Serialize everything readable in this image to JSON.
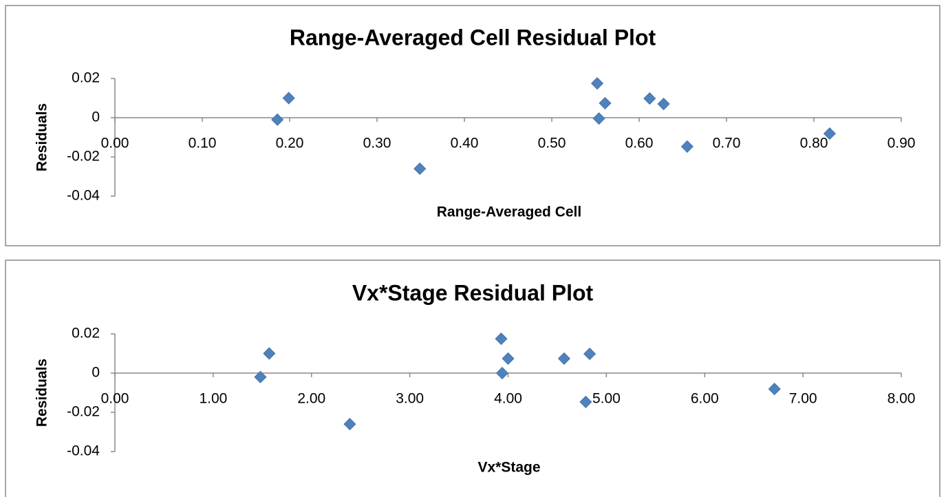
{
  "chart_data": [
    {
      "type": "scatter",
      "title": "Range-Averaged Cell  Residual Plot",
      "x_label": "Range-Averaged Cell",
      "y_label": "Residuals",
      "color": "#4f81bd",
      "x": [
        0.186,
        0.199,
        0.349,
        0.552,
        0.561,
        0.554,
        0.612,
        0.628,
        0.655,
        0.818
      ],
      "values": [
        -0.001,
        0.01,
        -0.026,
        0.0175,
        0.0074,
        -0.0004,
        0.0098,
        0.007,
        -0.0147,
        -0.0081
      ],
      "xlim": [
        0,
        0.9
      ],
      "xticks": [
        {
          "value": 0,
          "label": "0.00"
        },
        {
          "value": 0.1,
          "label": "0.10"
        },
        {
          "value": 0.2,
          "label": "0.20"
        },
        {
          "value": 0.3,
          "label": "0.30"
        },
        {
          "value": 0.4,
          "label": "0.40"
        },
        {
          "value": 0.5,
          "label": "0.50"
        },
        {
          "value": 0.6,
          "label": "0.60"
        },
        {
          "value": 0.7,
          "label": "0.70"
        },
        {
          "value": 0.8,
          "label": "0.80"
        },
        {
          "value": 0.9,
          "label": "0.90"
        }
      ],
      "ylim": [
        -0.04,
        0.02
      ],
      "yticks": [
        0.02,
        0,
        -0.02,
        -0.04
      ]
    },
    {
      "type": "scatter",
      "title": "Vx*Stage  Residual Plot",
      "x_label": "Vx*Stage",
      "y_label": "Residuals",
      "color": "#4f81bd",
      "x": [
        1.48,
        1.57,
        2.39,
        3.93,
        4.0,
        3.94,
        4.57,
        4.83,
        4.79,
        6.71
      ],
      "values": [
        -0.002,
        0.01,
        -0.026,
        0.0175,
        0.0074,
        0,
        0.0074,
        0.0098,
        -0.0147,
        -0.0081
      ],
      "xlim": [
        0,
        8
      ],
      "xticks": [
        {
          "value": 0,
          "label": "0.00"
        },
        {
          "value": 1,
          "label": "1.00"
        },
        {
          "value": 2,
          "label": "2.00"
        },
        {
          "value": 3,
          "label": "3.00"
        },
        {
          "value": 4,
          "label": "4.00"
        },
        {
          "value": 5,
          "label": "5.00"
        },
        {
          "value": 6,
          "label": "6.00"
        },
        {
          "value": 7,
          "label": "7.00"
        },
        {
          "value": 8,
          "label": "8.00"
        }
      ],
      "ylim": [
        -0.04,
        0.02
      ],
      "yticks": [
        0.02,
        0,
        -0.02,
        -0.04
      ]
    }
  ]
}
